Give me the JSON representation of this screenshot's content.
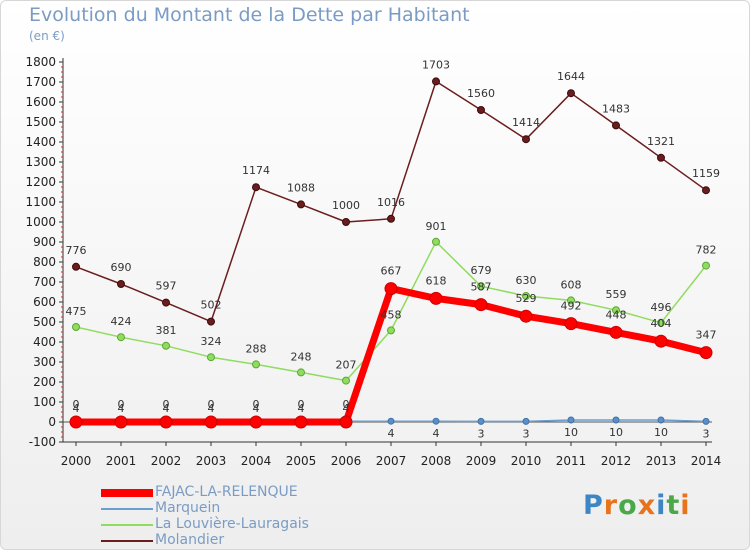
{
  "title": "Evolution du Montant de la Dette par Habitant",
  "unit": "(en €)",
  "logo": "Proxiti",
  "chart_data": {
    "type": "line",
    "categories": [
      "2000",
      "2001",
      "2002",
      "2003",
      "2004",
      "2005",
      "2006",
      "2007",
      "2008",
      "2009",
      "2010",
      "2011",
      "2012",
      "2013",
      "2014"
    ],
    "ylim": [
      -100,
      1800
    ],
    "yticks": [
      -100,
      0,
      100,
      200,
      300,
      400,
      500,
      600,
      700,
      800,
      900,
      1000,
      1100,
      1200,
      1300,
      1400,
      1500,
      1600,
      1700,
      1800
    ],
    "grid": false,
    "legend_position": "bottom-left",
    "series": [
      {
        "name": "FAJAC-LA-RELENQUE",
        "color": "#ff0000",
        "values": [
          0,
          0,
          0,
          0,
          0,
          0,
          0,
          667,
          618,
          587,
          529,
          492,
          448,
          404,
          347
        ]
      },
      {
        "name": "Marquein",
        "color": "#6a9fd0",
        "values": [
          4,
          4,
          4,
          4,
          4,
          4,
          4,
          4,
          4,
          3,
          3,
          10,
          10,
          10,
          3
        ]
      },
      {
        "name": "La Louvière-Lauragais",
        "color": "#8fdc5e",
        "values": [
          475,
          424,
          381,
          324,
          288,
          248,
          207,
          458,
          901,
          679,
          630,
          608,
          559,
          496,
          782
        ]
      },
      {
        "name": "Molandier",
        "color": "#6b1d1d",
        "values": [
          776,
          690,
          597,
          502,
          1174,
          1088,
          1000,
          1016,
          1703,
          1560,
          1414,
          1644,
          1483,
          1321,
          1159
        ]
      }
    ]
  }
}
